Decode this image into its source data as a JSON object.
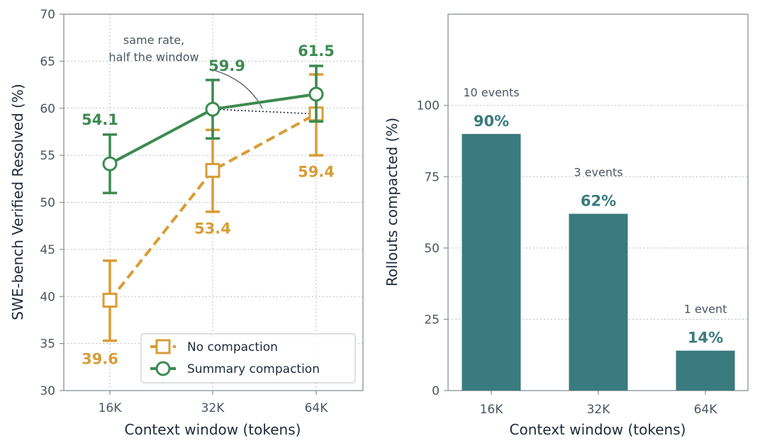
{
  "colors": {
    "no_compaction": "#d89c36",
    "summary": "#3d8a50",
    "bar": "#3a7b7f",
    "grid": "#b8bcc2",
    "spine": "#8a9099"
  },
  "chart_data": [
    {
      "type": "line",
      "xlabel": "Context window (tokens)",
      "ylabel": "SWE-bench Verified Resolved (%)",
      "categories": [
        "16K",
        "32K",
        "64K"
      ],
      "ylim": [
        30,
        70
      ],
      "yticks": [
        30,
        35,
        40,
        45,
        50,
        55,
        60,
        65,
        70
      ],
      "grid": true,
      "legend_position": "bottom-right",
      "series": [
        {
          "name": "No compaction",
          "values": [
            39.6,
            53.4,
            59.4
          ],
          "err_low": [
            35.3,
            49.0,
            55.0
          ],
          "err_high": [
            43.8,
            57.7,
            63.6
          ],
          "labels": [
            "39.6",
            "53.4",
            "59.4"
          ],
          "style": "dashed",
          "marker": "square"
        },
        {
          "name": "Summary compaction",
          "values": [
            54.1,
            59.9,
            61.5
          ],
          "err_low": [
            51.0,
            56.8,
            58.6
          ],
          "err_high": [
            57.2,
            63.0,
            64.5
          ],
          "labels": [
            "54.1",
            "59.9",
            "61.5"
          ],
          "style": "solid",
          "marker": "circle"
        }
      ],
      "annotation": {
        "lines": [
          "same rate,",
          "half the window"
        ]
      }
    },
    {
      "type": "bar",
      "xlabel": "Context window (tokens)",
      "ylabel": "Rollouts compacted (%)",
      "categories": [
        "16K",
        "32K",
        "64K"
      ],
      "values": [
        90,
        62,
        14
      ],
      "value_labels": [
        "90%",
        "62%",
        "14%"
      ],
      "event_labels": [
        "10 events",
        "3 events",
        "1 event"
      ],
      "ylim": [
        0,
        100
      ],
      "yticks": [
        0,
        25,
        50,
        75,
        100
      ],
      "grid": true
    }
  ]
}
